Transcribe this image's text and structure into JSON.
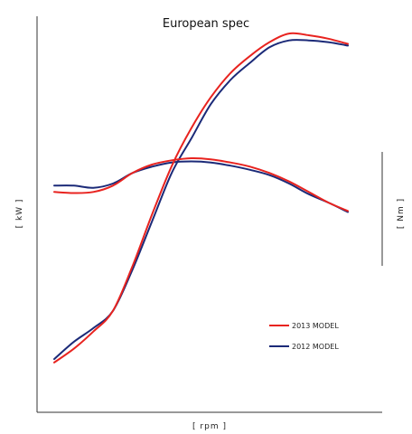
{
  "chart_data": {
    "type": "line",
    "title": "European spec",
    "xlabel": "[ rpm ]",
    "ylabel_left": "[ kW ]",
    "ylabel_right": "[ Nm ]",
    "xlim": [
      0,
      100
    ],
    "ylim_left": [
      0,
      100
    ],
    "ylim_right": [
      0,
      100
    ],
    "grid": false,
    "legend_position": "bottom-right",
    "colors": {
      "2013": "#e8231f",
      "2012": "#1b2a78"
    },
    "series": [
      {
        "name": "2013 MODEL",
        "color": "#e8231f",
        "curves": [
          {
            "quantity": "kW",
            "axis": "left",
            "points": [
              [
                0,
                5
              ],
              [
                5,
                9
              ],
              [
                10,
                14
              ],
              [
                15,
                20
              ],
              [
                20,
                33
              ],
              [
                25,
                48
              ],
              [
                30,
                62
              ],
              [
                35,
                73
              ],
              [
                40,
                82
              ],
              [
                45,
                89
              ],
              [
                50,
                94
              ],
              [
                55,
                98
              ],
              [
                60,
                100.5
              ],
              [
                65,
                100
              ],
              [
                70,
                99
              ],
              [
                75,
                97.5
              ]
            ]
          },
          {
            "quantity": "Nm",
            "axis": "right",
            "points": [
              [
                0,
                84
              ],
              [
                5,
                83.5
              ],
              [
                10,
                84
              ],
              [
                15,
                87
              ],
              [
                20,
                93
              ],
              [
                25,
                97
              ],
              [
                30,
                99
              ],
              [
                35,
                100
              ],
              [
                40,
                99.5
              ],
              [
                45,
                98
              ],
              [
                50,
                96
              ],
              [
                55,
                93
              ],
              [
                60,
                89
              ],
              [
                65,
                84
              ],
              [
                70,
                79
              ],
              [
                75,
                75
              ]
            ]
          }
        ]
      },
      {
        "name": "2012 MODEL",
        "color": "#1b2a78",
        "curves": [
          {
            "quantity": "kW",
            "axis": "left",
            "points": [
              [
                0,
                6
              ],
              [
                5,
                11
              ],
              [
                10,
                15
              ],
              [
                15,
                20
              ],
              [
                20,
                32
              ],
              [
                25,
                46
              ],
              [
                30,
                60
              ],
              [
                35,
                70
              ],
              [
                40,
                80
              ],
              [
                45,
                87
              ],
              [
                50,
                92
              ],
              [
                55,
                96.5
              ],
              [
                60,
                98.5
              ],
              [
                65,
                98.5
              ],
              [
                70,
                98
              ],
              [
                75,
                97
              ]
            ]
          },
          {
            "quantity": "Nm",
            "axis": "right",
            "points": [
              [
                0,
                87
              ],
              [
                5,
                87
              ],
              [
                10,
                86
              ],
              [
                15,
                88
              ],
              [
                20,
                93
              ],
              [
                25,
                96
              ],
              [
                30,
                98
              ],
              [
                35,
                98.5
              ],
              [
                40,
                98
              ],
              [
                45,
                96.5
              ],
              [
                50,
                94.5
              ],
              [
                55,
                92
              ],
              [
                60,
                88
              ],
              [
                65,
                83
              ],
              [
                70,
                79
              ],
              [
                75,
                74.5
              ]
            ]
          }
        ]
      }
    ]
  }
}
